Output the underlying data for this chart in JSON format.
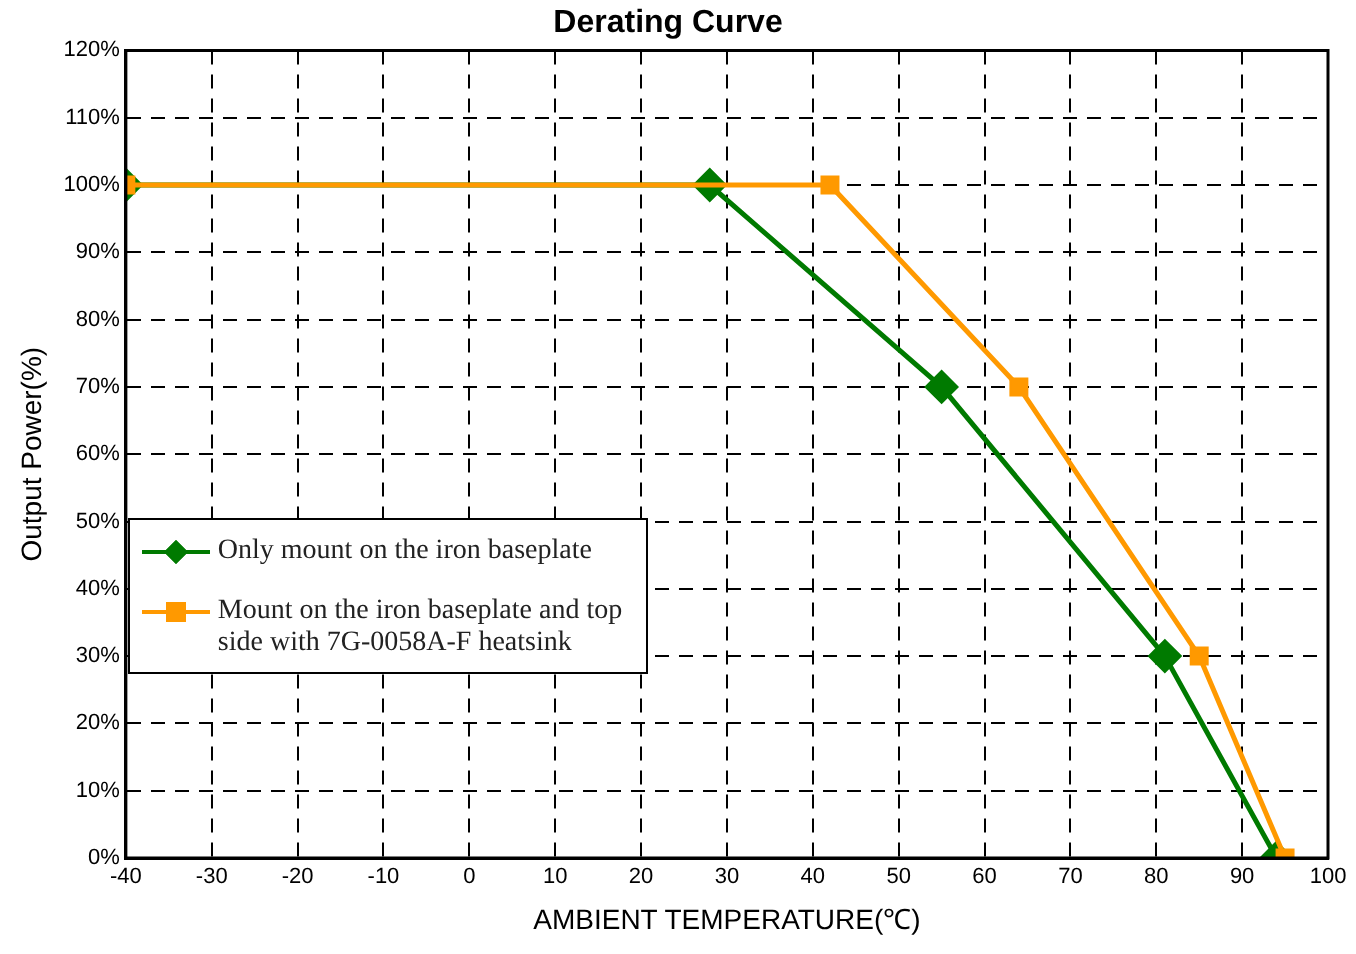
{
  "chart_data": {
    "type": "line",
    "title": "Derating Curve",
    "xlabel": "AMBIENT TEMPERATURE(℃)",
    "ylabel": "Output Power(%)",
    "xlim": [
      -40,
      100
    ],
    "xticks": [
      -40,
      -30,
      -20,
      -10,
      0,
      10,
      20,
      30,
      40,
      50,
      60,
      70,
      80,
      90,
      100
    ],
    "ylim": [
      0,
      120
    ],
    "yticks": [
      {
        "value": 0,
        "label": "0%"
      },
      {
        "value": 10,
        "label": "10%"
      },
      {
        "value": 20,
        "label": "20%"
      },
      {
        "value": 30,
        "label": "30%"
      },
      {
        "value": 40,
        "label": "40%"
      },
      {
        "value": 50,
        "label": "50%"
      },
      {
        "value": 60,
        "label": "60%"
      },
      {
        "value": 70,
        "label": "70%"
      },
      {
        "value": 80,
        "label": "80%"
      },
      {
        "value": 90,
        "label": "90%"
      },
      {
        "value": 100,
        "label": "100%"
      },
      {
        "value": 110,
        "label": "110%"
      },
      {
        "value": 120,
        "label": "120%"
      }
    ],
    "grid": true,
    "line_style": "solid",
    "legend": "left",
    "series": [
      {
        "name": "Only mount on the iron baseplate",
        "color": "#007a00",
        "marker": "diamond",
        "x": [
          -40,
          28,
          55,
          81,
          94
        ],
        "values": [
          100,
          100,
          70,
          30,
          0
        ]
      },
      {
        "name": "Mount on the iron baseplate and top side with 7G-0058A-F heatsink",
        "color": "#ff9900",
        "marker": "square",
        "x": [
          -40,
          42,
          64,
          85,
          95
        ],
        "values": [
          100,
          100,
          70,
          30,
          0
        ]
      }
    ]
  }
}
